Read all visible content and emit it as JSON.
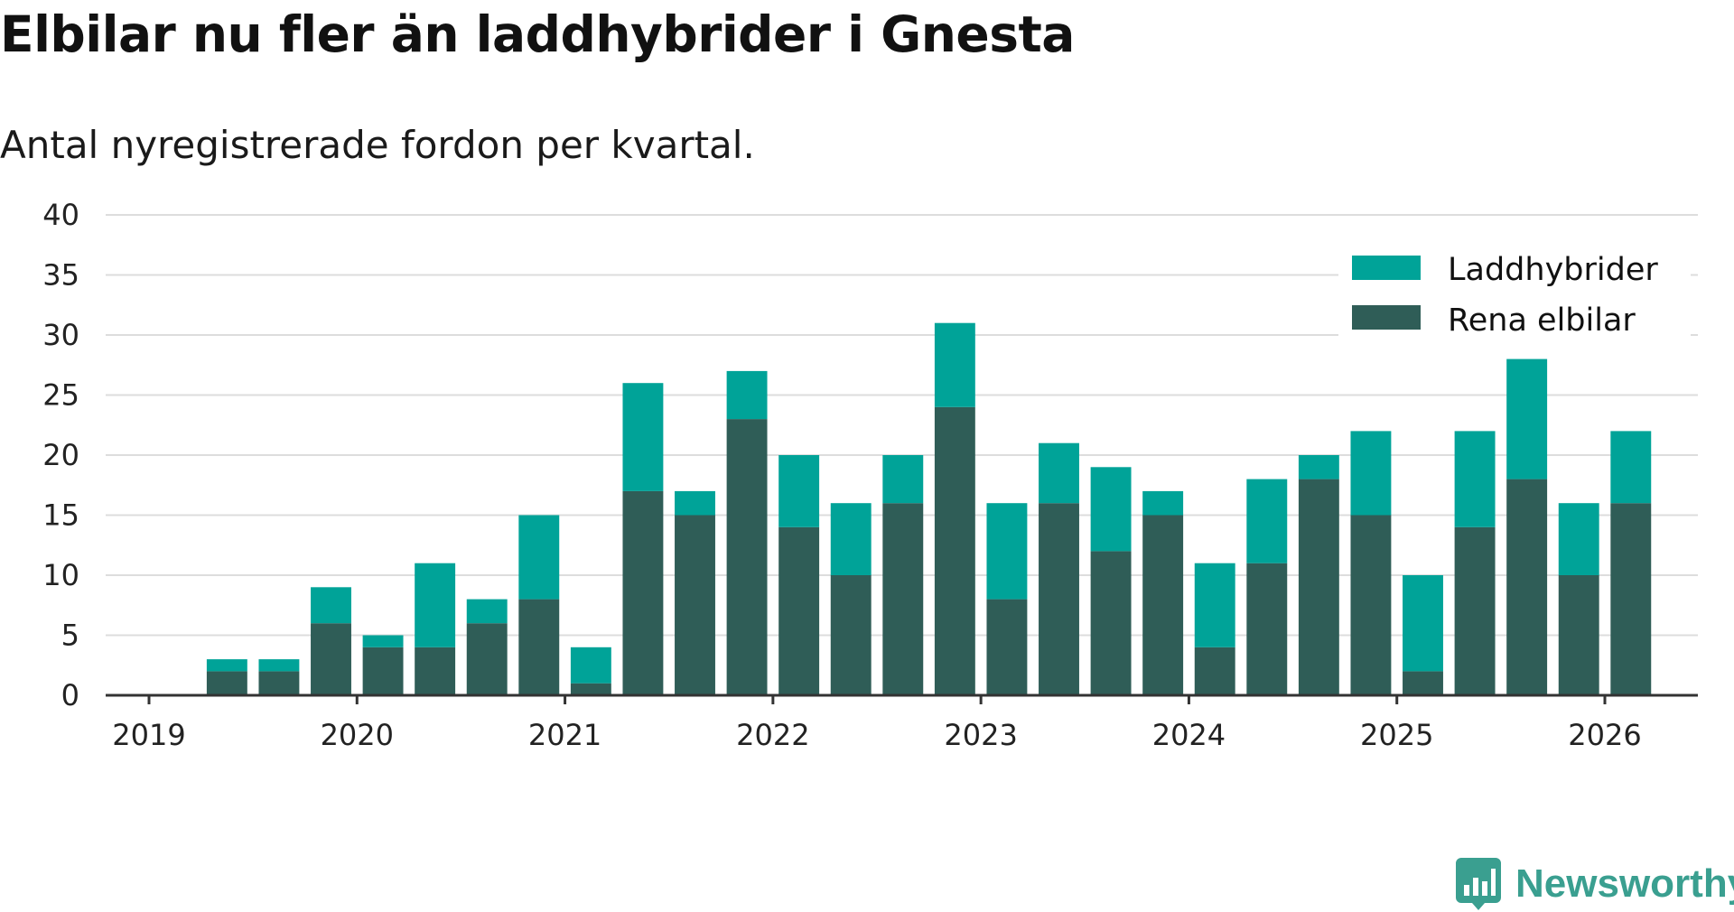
{
  "chart_data": {
    "type": "bar",
    "stacked": true,
    "title": "Elbilar nu fler än laddhybrider i Gnesta",
    "subtitle": "Antal nyregistrerade fordon per kvartal.",
    "xlabel": "",
    "ylabel": "",
    "ylim": [
      0,
      40
    ],
    "yticks": [
      0,
      5,
      10,
      15,
      20,
      25,
      30,
      35,
      40
    ],
    "xticks": [
      "2019",
      "2020",
      "2021",
      "2022",
      "2023",
      "2024",
      "2025",
      "2026"
    ],
    "grid": true,
    "legend_position": "top-right",
    "categories": [
      "2019 Q1",
      "2019 Q2",
      "2019 Q3",
      "2019 Q4",
      "2020 Q1",
      "2020 Q2",
      "2020 Q3",
      "2020 Q4",
      "2021 Q1",
      "2021 Q2",
      "2021 Q3",
      "2021 Q4",
      "2022 Q1",
      "2022 Q2",
      "2022 Q3",
      "2022 Q4",
      "2023 Q1",
      "2023 Q2",
      "2023 Q3",
      "2023 Q4",
      "2024 Q1",
      "2024 Q2",
      "2024 Q3",
      "2024 Q4",
      "2025 Q1",
      "2025 Q2",
      "2025 Q3",
      "2025 Q4",
      "2026 Q1",
      "2026 Q2",
      "2026 Q3",
      "2026 Q4"
    ],
    "series": [
      {
        "name": "Rena elbilar",
        "color": "#2f5d57",
        "values": [
          0,
          2,
          2,
          6,
          4,
          4,
          6,
          8,
          1,
          17,
          15,
          23,
          14,
          10,
          16,
          24,
          8,
          16,
          12,
          15,
          4,
          11,
          18,
          15,
          2,
          14,
          18,
          10,
          16,
          0,
          0,
          0
        ]
      },
      {
        "name": "Laddhybrider",
        "color": "#00a398",
        "values": [
          0,
          1,
          1,
          3,
          1,
          7,
          2,
          7,
          3,
          9,
          2,
          4,
          6,
          6,
          4,
          7,
          8,
          5,
          7,
          2,
          7,
          7,
          2,
          7,
          8,
          8,
          10,
          6,
          6,
          0,
          0,
          0
        ]
      }
    ],
    "legend": [
      "Laddhybrider",
      "Rena elbilar"
    ]
  },
  "branding": {
    "name": "Newsworthy",
    "icon": "newsworthy-logo-icon",
    "color": "#3a9f90"
  },
  "colors": {
    "grid": "#dddddd",
    "axis": "#333333"
  }
}
